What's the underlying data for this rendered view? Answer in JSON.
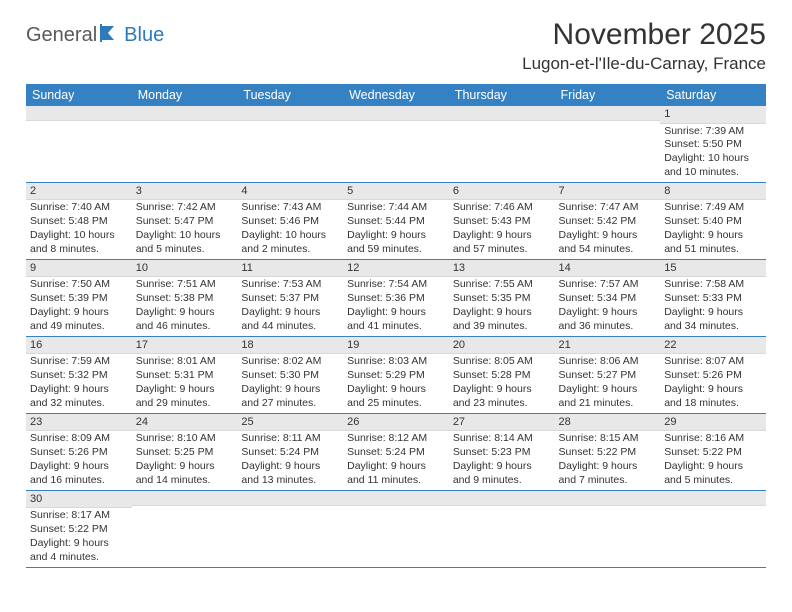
{
  "logo": {
    "part1": "General",
    "part2": "Blue"
  },
  "title": "November 2025",
  "location": "Lugon-et-l'Ile-du-Carnay, France",
  "colors": {
    "header_bg": "#3481c4",
    "header_fg": "#ffffff",
    "daynum_bg": "#e8e8e8",
    "row_border": "#3481c4",
    "logo_gray": "#58595b",
    "logo_blue": "#2f79bd"
  },
  "days_of_week": [
    "Sunday",
    "Monday",
    "Tuesday",
    "Wednesday",
    "Thursday",
    "Friday",
    "Saturday"
  ],
  "weeks": [
    [
      {
        "n": "",
        "sunrise": "",
        "sunset": "",
        "daylight": ""
      },
      {
        "n": "",
        "sunrise": "",
        "sunset": "",
        "daylight": ""
      },
      {
        "n": "",
        "sunrise": "",
        "sunset": "",
        "daylight": ""
      },
      {
        "n": "",
        "sunrise": "",
        "sunset": "",
        "daylight": ""
      },
      {
        "n": "",
        "sunrise": "",
        "sunset": "",
        "daylight": ""
      },
      {
        "n": "",
        "sunrise": "",
        "sunset": "",
        "daylight": ""
      },
      {
        "n": "1",
        "sunrise": "Sunrise: 7:39 AM",
        "sunset": "Sunset: 5:50 PM",
        "daylight": "Daylight: 10 hours and 10 minutes."
      }
    ],
    [
      {
        "n": "2",
        "sunrise": "Sunrise: 7:40 AM",
        "sunset": "Sunset: 5:48 PM",
        "daylight": "Daylight: 10 hours and 8 minutes."
      },
      {
        "n": "3",
        "sunrise": "Sunrise: 7:42 AM",
        "sunset": "Sunset: 5:47 PM",
        "daylight": "Daylight: 10 hours and 5 minutes."
      },
      {
        "n": "4",
        "sunrise": "Sunrise: 7:43 AM",
        "sunset": "Sunset: 5:46 PM",
        "daylight": "Daylight: 10 hours and 2 minutes."
      },
      {
        "n": "5",
        "sunrise": "Sunrise: 7:44 AM",
        "sunset": "Sunset: 5:44 PM",
        "daylight": "Daylight: 9 hours and 59 minutes."
      },
      {
        "n": "6",
        "sunrise": "Sunrise: 7:46 AM",
        "sunset": "Sunset: 5:43 PM",
        "daylight": "Daylight: 9 hours and 57 minutes."
      },
      {
        "n": "7",
        "sunrise": "Sunrise: 7:47 AM",
        "sunset": "Sunset: 5:42 PM",
        "daylight": "Daylight: 9 hours and 54 minutes."
      },
      {
        "n": "8",
        "sunrise": "Sunrise: 7:49 AM",
        "sunset": "Sunset: 5:40 PM",
        "daylight": "Daylight: 9 hours and 51 minutes."
      }
    ],
    [
      {
        "n": "9",
        "sunrise": "Sunrise: 7:50 AM",
        "sunset": "Sunset: 5:39 PM",
        "daylight": "Daylight: 9 hours and 49 minutes."
      },
      {
        "n": "10",
        "sunrise": "Sunrise: 7:51 AM",
        "sunset": "Sunset: 5:38 PM",
        "daylight": "Daylight: 9 hours and 46 minutes."
      },
      {
        "n": "11",
        "sunrise": "Sunrise: 7:53 AM",
        "sunset": "Sunset: 5:37 PM",
        "daylight": "Daylight: 9 hours and 44 minutes."
      },
      {
        "n": "12",
        "sunrise": "Sunrise: 7:54 AM",
        "sunset": "Sunset: 5:36 PM",
        "daylight": "Daylight: 9 hours and 41 minutes."
      },
      {
        "n": "13",
        "sunrise": "Sunrise: 7:55 AM",
        "sunset": "Sunset: 5:35 PM",
        "daylight": "Daylight: 9 hours and 39 minutes."
      },
      {
        "n": "14",
        "sunrise": "Sunrise: 7:57 AM",
        "sunset": "Sunset: 5:34 PM",
        "daylight": "Daylight: 9 hours and 36 minutes."
      },
      {
        "n": "15",
        "sunrise": "Sunrise: 7:58 AM",
        "sunset": "Sunset: 5:33 PM",
        "daylight": "Daylight: 9 hours and 34 minutes."
      }
    ],
    [
      {
        "n": "16",
        "sunrise": "Sunrise: 7:59 AM",
        "sunset": "Sunset: 5:32 PM",
        "daylight": "Daylight: 9 hours and 32 minutes."
      },
      {
        "n": "17",
        "sunrise": "Sunrise: 8:01 AM",
        "sunset": "Sunset: 5:31 PM",
        "daylight": "Daylight: 9 hours and 29 minutes."
      },
      {
        "n": "18",
        "sunrise": "Sunrise: 8:02 AM",
        "sunset": "Sunset: 5:30 PM",
        "daylight": "Daylight: 9 hours and 27 minutes."
      },
      {
        "n": "19",
        "sunrise": "Sunrise: 8:03 AM",
        "sunset": "Sunset: 5:29 PM",
        "daylight": "Daylight: 9 hours and 25 minutes."
      },
      {
        "n": "20",
        "sunrise": "Sunrise: 8:05 AM",
        "sunset": "Sunset: 5:28 PM",
        "daylight": "Daylight: 9 hours and 23 minutes."
      },
      {
        "n": "21",
        "sunrise": "Sunrise: 8:06 AM",
        "sunset": "Sunset: 5:27 PM",
        "daylight": "Daylight: 9 hours and 21 minutes."
      },
      {
        "n": "22",
        "sunrise": "Sunrise: 8:07 AM",
        "sunset": "Sunset: 5:26 PM",
        "daylight": "Daylight: 9 hours and 18 minutes."
      }
    ],
    [
      {
        "n": "23",
        "sunrise": "Sunrise: 8:09 AM",
        "sunset": "Sunset: 5:26 PM",
        "daylight": "Daylight: 9 hours and 16 minutes."
      },
      {
        "n": "24",
        "sunrise": "Sunrise: 8:10 AM",
        "sunset": "Sunset: 5:25 PM",
        "daylight": "Daylight: 9 hours and 14 minutes."
      },
      {
        "n": "25",
        "sunrise": "Sunrise: 8:11 AM",
        "sunset": "Sunset: 5:24 PM",
        "daylight": "Daylight: 9 hours and 13 minutes."
      },
      {
        "n": "26",
        "sunrise": "Sunrise: 8:12 AM",
        "sunset": "Sunset: 5:24 PM",
        "daylight": "Daylight: 9 hours and 11 minutes."
      },
      {
        "n": "27",
        "sunrise": "Sunrise: 8:14 AM",
        "sunset": "Sunset: 5:23 PM",
        "daylight": "Daylight: 9 hours and 9 minutes."
      },
      {
        "n": "28",
        "sunrise": "Sunrise: 8:15 AM",
        "sunset": "Sunset: 5:22 PM",
        "daylight": "Daylight: 9 hours and 7 minutes."
      },
      {
        "n": "29",
        "sunrise": "Sunrise: 8:16 AM",
        "sunset": "Sunset: 5:22 PM",
        "daylight": "Daylight: 9 hours and 5 minutes."
      }
    ],
    [
      {
        "n": "30",
        "sunrise": "Sunrise: 8:17 AM",
        "sunset": "Sunset: 5:22 PM",
        "daylight": "Daylight: 9 hours and 4 minutes."
      },
      {
        "n": "",
        "sunrise": "",
        "sunset": "",
        "daylight": ""
      },
      {
        "n": "",
        "sunrise": "",
        "sunset": "",
        "daylight": ""
      },
      {
        "n": "",
        "sunrise": "",
        "sunset": "",
        "daylight": ""
      },
      {
        "n": "",
        "sunrise": "",
        "sunset": "",
        "daylight": ""
      },
      {
        "n": "",
        "sunrise": "",
        "sunset": "",
        "daylight": ""
      },
      {
        "n": "",
        "sunrise": "",
        "sunset": "",
        "daylight": ""
      }
    ]
  ]
}
